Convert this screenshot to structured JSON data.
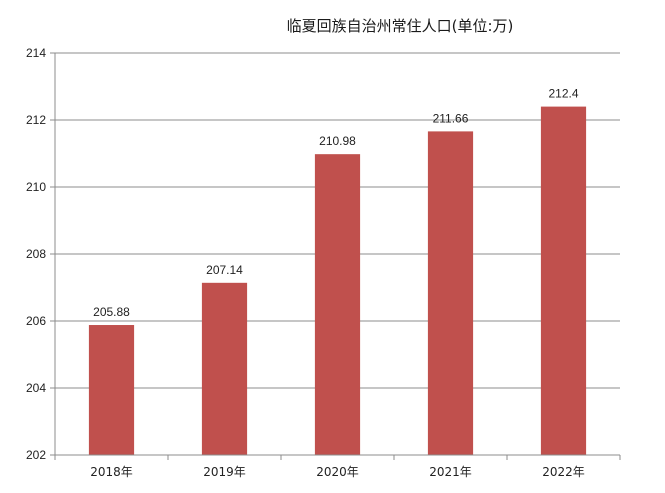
{
  "chart_data": {
    "type": "bar",
    "title": "临夏回族自治州常住人口(单位:万)",
    "categories": [
      "2018年",
      "2019年",
      "2020年",
      "2021年",
      "2022年"
    ],
    "values": [
      205.88,
      207.14,
      210.98,
      211.66,
      212.4
    ],
    "data_labels": [
      "205.88",
      "207.14",
      "210.98",
      "211.66",
      "212.4"
    ],
    "yticks": [
      "202",
      "204",
      "206",
      "208",
      "210",
      "212",
      "214"
    ],
    "ylim": [
      202,
      214
    ],
    "grid": true,
    "legend": "none",
    "colors": {
      "bar": "#c0504d",
      "grid": "#8c8c8c",
      "axis": "#8c8c8c"
    }
  }
}
